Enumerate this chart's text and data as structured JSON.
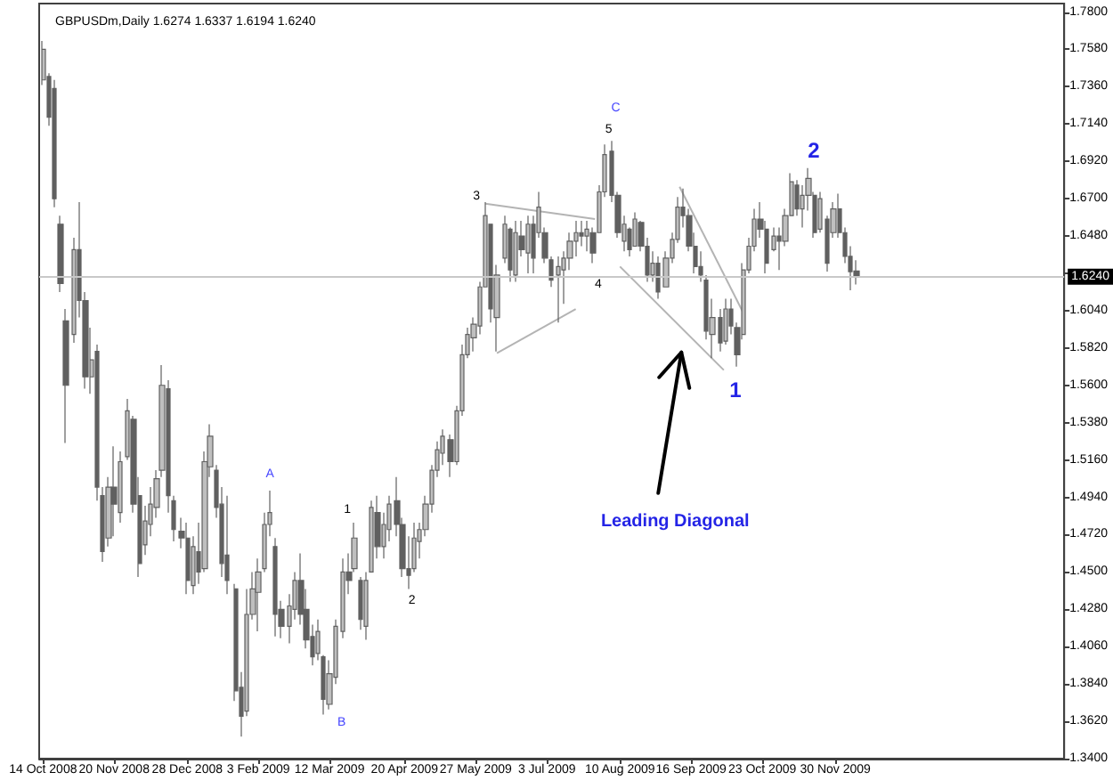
{
  "chart_data": {
    "type": "candlestick",
    "title": "GBPUSDm,Daily 1.6274 1.6337 1.6194 1.6240",
    "color": "#606060",
    "x": [
      "2008-10-14",
      "2008-10-17",
      "2008-10-20",
      "2008-10-23",
      "2008-10-26",
      "2008-10-30",
      "2008-11-02",
      "2008-11-05",
      "2008-11-08",
      "2008-11-11",
      "2008-11-14",
      "2008-11-17",
      "2008-11-20",
      "2008-11-23",
      "2008-11-27",
      "2008-11-30",
      "2008-12-03",
      "2008-12-06",
      "2008-12-09",
      "2008-12-12",
      "2008-12-15",
      "2008-12-18",
      "2008-12-21",
      "2008-12-25",
      "2008-12-28",
      "2008-12-31",
      "2009-01-03",
      "2009-01-06",
      "2009-01-09",
      "2009-01-12",
      "2009-01-15",
      "2009-01-18",
      "2009-01-22",
      "2009-01-25",
      "2009-01-28",
      "2009-01-31",
      "2009-02-03",
      "2009-02-06",
      "2009-02-09",
      "2009-02-12",
      "2009-02-15",
      "2009-02-19",
      "2009-02-22",
      "2009-02-25",
      "2009-02-28",
      "2009-03-03",
      "2009-03-06",
      "2009-03-09",
      "2009-03-12",
      "2009-03-15",
      "2009-03-19",
      "2009-03-22",
      "2009-03-25",
      "2009-03-28",
      "2009-03-31",
      "2009-04-03",
      "2009-04-06",
      "2009-04-09",
      "2009-04-12",
      "2009-04-16",
      "2009-04-19",
      "2009-04-22",
      "2009-04-25",
      "2009-04-28",
      "2009-05-01",
      "2009-05-04",
      "2009-05-07",
      "2009-05-10",
      "2009-05-14",
      "2009-05-17",
      "2009-05-20",
      "2009-05-23",
      "2009-05-26",
      "2009-05-29",
      "2009-06-01",
      "2009-06-04",
      "2009-06-07",
      "2009-06-11",
      "2009-06-14",
      "2009-06-17",
      "2009-06-20",
      "2009-06-23",
      "2009-06-26",
      "2009-06-29",
      "2009-07-02",
      "2009-07-05",
      "2009-07-09",
      "2009-07-12",
      "2009-07-15",
      "2009-07-18",
      "2009-07-21",
      "2009-07-24",
      "2009-07-27",
      "2009-07-30",
      "2009-08-02",
      "2009-08-06",
      "2009-08-09",
      "2009-08-12",
      "2009-08-15",
      "2009-08-18",
      "2009-08-21",
      "2009-08-24",
      "2009-08-27",
      "2009-08-30",
      "2009-09-03",
      "2009-09-06",
      "2009-09-09",
      "2009-09-12",
      "2009-09-15",
      "2009-09-18",
      "2009-09-21",
      "2009-09-24",
      "2009-09-27",
      "2009-10-01",
      "2009-10-04",
      "2009-10-07",
      "2009-10-10",
      "2009-10-13",
      "2009-10-16",
      "2009-10-19",
      "2009-10-22",
      "2009-10-25",
      "2009-10-29",
      "2009-11-01",
      "2009-11-04",
      "2009-11-07",
      "2009-11-10",
      "2009-11-13",
      "2009-11-16",
      "2009-11-19",
      "2009-11-22",
      "2009-11-26",
      "2009-11-29",
      "2009-12-02",
      "2009-12-05",
      "2009-12-08",
      "2009-12-11"
    ],
    "ohlc": [
      [
        1.74,
        1.763,
        1.737,
        1.758
      ],
      [
        1.742,
        1.744,
        1.713,
        1.718
      ],
      [
        1.735,
        1.74,
        1.665,
        1.67
      ],
      [
        1.655,
        1.66,
        1.615,
        1.62
      ],
      [
        1.598,
        1.605,
        1.526,
        1.56
      ],
      [
        1.59,
        1.647,
        1.585,
        1.64
      ],
      [
        1.64,
        1.668,
        1.6,
        1.61
      ],
      [
        1.61,
        1.615,
        1.558,
        1.565
      ],
      [
        1.565,
        1.594,
        1.555,
        1.575
      ],
      [
        1.58,
        1.584,
        1.492,
        1.5
      ],
      [
        1.495,
        1.5,
        1.456,
        1.462
      ],
      [
        1.47,
        1.506,
        1.465,
        1.5
      ],
      [
        1.5,
        1.524,
        1.471,
        1.49
      ],
      [
        1.485,
        1.521,
        1.479,
        1.515
      ],
      [
        1.518,
        1.552,
        1.516,
        1.545
      ],
      [
        1.54,
        1.542,
        1.485,
        1.49
      ],
      [
        1.495,
        1.506,
        1.447,
        1.455
      ],
      [
        1.466,
        1.489,
        1.46,
        1.48
      ],
      [
        1.478,
        1.5,
        1.471,
        1.49
      ],
      [
        1.488,
        1.51,
        1.482,
        1.505
      ],
      [
        1.51,
        1.572,
        1.506,
        1.56
      ],
      [
        1.558,
        1.563,
        1.485,
        1.495
      ],
      [
        1.492,
        1.495,
        1.468,
        1.475
      ],
      [
        1.474,
        1.482,
        1.464,
        1.47
      ],
      [
        1.47,
        1.479,
        1.437,
        1.445
      ],
      [
        1.442,
        1.471,
        1.437,
        1.465
      ],
      [
        1.462,
        1.479,
        1.443,
        1.45
      ],
      [
        1.452,
        1.521,
        1.45,
        1.515
      ],
      [
        1.512,
        1.537,
        1.506,
        1.53
      ],
      [
        1.51,
        1.513,
        1.482,
        1.488
      ],
      [
        1.49,
        1.5,
        1.447,
        1.455
      ],
      [
        1.46,
        1.495,
        1.437,
        1.445
      ],
      [
        1.44,
        1.443,
        1.374,
        1.38
      ],
      [
        1.382,
        1.391,
        1.353,
        1.365
      ],
      [
        1.368,
        1.44,
        1.365,
        1.425
      ],
      [
        1.425,
        1.45,
        1.422,
        1.44
      ],
      [
        1.438,
        1.458,
        1.415,
        1.45
      ],
      [
        1.452,
        1.485,
        1.45,
        1.478
      ],
      [
        1.478,
        1.498,
        1.471,
        1.485
      ],
      [
        1.465,
        1.47,
        1.412,
        1.425
      ],
      [
        1.428,
        1.433,
        1.411,
        1.418
      ],
      [
        1.418,
        1.437,
        1.408,
        1.43
      ],
      [
        1.428,
        1.45,
        1.422,
        1.445
      ],
      [
        1.445,
        1.461,
        1.419,
        1.425
      ],
      [
        1.428,
        1.44,
        1.405,
        1.41
      ],
      [
        1.412,
        1.419,
        1.395,
        1.4
      ],
      [
        1.402,
        1.422,
        1.398,
        1.415
      ],
      [
        1.4,
        1.401,
        1.366,
        1.375
      ],
      [
        1.372,
        1.398,
        1.369,
        1.39
      ],
      [
        1.388,
        1.422,
        1.384,
        1.418
      ],
      [
        1.415,
        1.458,
        1.411,
        1.45
      ],
      [
        1.45,
        1.461,
        1.437,
        1.445
      ],
      [
        1.452,
        1.479,
        1.45,
        1.47
      ],
      [
        1.445,
        1.447,
        1.416,
        1.422
      ],
      [
        1.418,
        1.45,
        1.41,
        1.445
      ],
      [
        1.45,
        1.492,
        1.45,
        1.488
      ],
      [
        1.485,
        1.495,
        1.458,
        1.465
      ],
      [
        1.465,
        1.485,
        1.458,
        1.478
      ],
      [
        1.475,
        1.495,
        1.468,
        1.49
      ],
      [
        1.492,
        1.506,
        1.471,
        1.478
      ],
      [
        1.478,
        1.482,
        1.447,
        1.452
      ],
      [
        1.452,
        1.471,
        1.44,
        1.448
      ],
      [
        1.452,
        1.479,
        1.45,
        1.47
      ],
      [
        1.468,
        1.479,
        1.458,
        1.475
      ],
      [
        1.475,
        1.495,
        1.471,
        1.49
      ],
      [
        1.49,
        1.513,
        1.485,
        1.51
      ],
      [
        1.51,
        1.527,
        1.506,
        1.522
      ],
      [
        1.52,
        1.534,
        1.513,
        1.53
      ],
      [
        1.528,
        1.531,
        1.506,
        1.515
      ],
      [
        1.515,
        1.548,
        1.513,
        1.545
      ],
      [
        1.545,
        1.584,
        1.542,
        1.578
      ],
      [
        1.578,
        1.594,
        1.576,
        1.59
      ],
      [
        1.588,
        1.6,
        1.58,
        1.596
      ],
      [
        1.595,
        1.621,
        1.59,
        1.618
      ],
      [
        1.618,
        1.668,
        1.618,
        1.66
      ],
      [
        1.655,
        1.655,
        1.597,
        1.605
      ],
      [
        1.6,
        1.631,
        1.58,
        1.625
      ],
      [
        1.635,
        1.66,
        1.632,
        1.655
      ],
      [
        1.652,
        1.653,
        1.621,
        1.628
      ],
      [
        1.625,
        1.657,
        1.621,
        1.65
      ],
      [
        1.648,
        1.657,
        1.636,
        1.64
      ],
      [
        1.638,
        1.66,
        1.626,
        1.655
      ],
      [
        1.655,
        1.66,
        1.626,
        1.635
      ],
      [
        1.65,
        1.674,
        1.647,
        1.665
      ],
      [
        1.65,
        1.653,
        1.632,
        1.635
      ],
      [
        1.634,
        1.636,
        1.618,
        1.622
      ],
      [
        1.625,
        1.636,
        1.597,
        1.63
      ],
      [
        1.628,
        1.639,
        1.608,
        1.635
      ],
      [
        1.635,
        1.65,
        1.628,
        1.645
      ],
      [
        1.645,
        1.657,
        1.636,
        1.65
      ],
      [
        1.65,
        1.657,
        1.642,
        1.648
      ],
      [
        1.648,
        1.657,
        1.639,
        1.652
      ],
      [
        1.65,
        1.653,
        1.632,
        1.638
      ],
      [
        1.65,
        1.678,
        1.65,
        1.674
      ],
      [
        1.674,
        1.702,
        1.671,
        1.696
      ],
      [
        1.698,
        1.704,
        1.668,
        1.672
      ],
      [
        1.672,
        1.674,
        1.647,
        1.65
      ],
      [
        1.645,
        1.66,
        1.639,
        1.655
      ],
      [
        1.652,
        1.653,
        1.636,
        1.64
      ],
      [
        1.642,
        1.662,
        1.642,
        1.658
      ],
      [
        1.656,
        1.657,
        1.639,
        1.642
      ],
      [
        1.642,
        1.647,
        1.621,
        1.625
      ],
      [
        1.625,
        1.639,
        1.621,
        1.632
      ],
      [
        1.632,
        1.636,
        1.611,
        1.615
      ],
      [
        1.618,
        1.639,
        1.618,
        1.635
      ],
      [
        1.635,
        1.65,
        1.632,
        1.646
      ],
      [
        1.646,
        1.671,
        1.644,
        1.665
      ],
      [
        1.665,
        1.676,
        1.653,
        1.66
      ],
      [
        1.66,
        1.664,
        1.639,
        1.642
      ],
      [
        1.642,
        1.65,
        1.626,
        1.63
      ],
      [
        1.63,
        1.639,
        1.621,
        1.625
      ],
      [
        1.622,
        1.625,
        1.587,
        1.592
      ],
      [
        1.59,
        1.611,
        1.576,
        1.6
      ],
      [
        1.6,
        1.605,
        1.58,
        1.585
      ],
      [
        1.586,
        1.611,
        1.584,
        1.605
      ],
      [
        1.605,
        1.611,
        1.59,
        1.595
      ],
      [
        1.594,
        1.597,
        1.571,
        1.578
      ],
      [
        1.59,
        1.632,
        1.587,
        1.628
      ],
      [
        1.628,
        1.647,
        1.626,
        1.642
      ],
      [
        1.642,
        1.664,
        1.639,
        1.658
      ],
      [
        1.658,
        1.668,
        1.647,
        1.652
      ],
      [
        1.652,
        1.657,
        1.626,
        1.632
      ],
      [
        1.64,
        1.653,
        1.639,
        1.648
      ],
      [
        1.648,
        1.653,
        1.628,
        1.645
      ],
      [
        1.645,
        1.664,
        1.642,
        1.66
      ],
      [
        1.66,
        1.685,
        1.66,
        1.68
      ],
      [
        1.678,
        1.681,
        1.66,
        1.664
      ],
      [
        1.664,
        1.678,
        1.653,
        1.672
      ],
      [
        1.672,
        1.688,
        1.663,
        1.682
      ],
      [
        1.672,
        1.674,
        1.647,
        1.65
      ],
      [
        1.652,
        1.674,
        1.65,
        1.67
      ],
      [
        1.658,
        1.66,
        1.627,
        1.632
      ],
      [
        1.65,
        1.668,
        1.647,
        1.664
      ],
      [
        1.664,
        1.673,
        1.647,
        1.65
      ],
      [
        1.65,
        1.653,
        1.632,
        1.636
      ],
      [
        1.636,
        1.642,
        1.616,
        1.627
      ],
      [
        1.6274,
        1.6337,
        1.6194,
        1.624
      ]
    ],
    "series": [
      {
        "type": "line",
        "color": "#b4b4b4",
        "x": [
          "2009-06-01",
          "2009-07-28"
        ],
        "values": [
          1.667,
          1.658
        ]
      },
      {
        "type": "line",
        "color": "#b4b4b4",
        "x": [
          "2009-06-07",
          "2009-07-18"
        ],
        "values": [
          1.579,
          1.605
        ]
      },
      {
        "type": "line",
        "color": "#b4b4b4",
        "x": [
          "2009-08-10",
          "2009-10-03"
        ],
        "values": [
          1.63,
          1.569
        ]
      },
      {
        "type": "line",
        "color": "#b4b4b4",
        "x": [
          "2009-09-10",
          "2009-10-13"
        ],
        "values": [
          1.677,
          1.603
        ]
      }
    ],
    "xlim": [
      "2008-10-12",
      "2010-03-29"
    ],
    "xticks": [
      {
        "value": "2008-10-14",
        "label": "14 Oct 2008"
      },
      {
        "value": "2008-11-20",
        "label": "20 Nov 2008"
      },
      {
        "value": "2008-12-28",
        "label": "28 Dec 2008"
      },
      {
        "value": "2009-02-03",
        "label": "3 Feb 2009"
      },
      {
        "value": "2009-03-12",
        "label": "12 Mar 2009"
      },
      {
        "value": "2009-04-20",
        "label": "20 Apr 2009"
      },
      {
        "value": "2009-05-27",
        "label": "27 May 2009"
      },
      {
        "value": "2009-07-03",
        "label": "3 Jul 2009"
      },
      {
        "value": "2009-08-10",
        "label": "10 Aug 2009"
      },
      {
        "value": "2009-09-16",
        "label": "16 Sep 2009"
      },
      {
        "value": "2009-10-23",
        "label": "23 Oct 2009"
      },
      {
        "value": "2009-11-30",
        "label": "30 Nov 2009"
      }
    ],
    "ylim": [
      1.34,
      1.785
    ],
    "yticks": [
      {
        "value": 1.34,
        "label": "1.3400"
      },
      {
        "value": 1.362,
        "label": "1.3620"
      },
      {
        "value": 1.384,
        "label": "1.3840"
      },
      {
        "value": 1.406,
        "label": "1.4060"
      },
      {
        "value": 1.428,
        "label": "1.4280"
      },
      {
        "value": 1.45,
        "label": "1.4500"
      },
      {
        "value": 1.472,
        "label": "1.4720"
      },
      {
        "value": 1.494,
        "label": "1.4940"
      },
      {
        "value": 1.516,
        "label": "1.5160"
      },
      {
        "value": 1.538,
        "label": "1.5380"
      },
      {
        "value": 1.56,
        "label": "1.5600"
      },
      {
        "value": 1.582,
        "label": "1.5820"
      },
      {
        "value": 1.604,
        "label": "1.6040"
      },
      {
        "value": 1.626,
        "label": null
      },
      {
        "value": 1.648,
        "label": "1.6480"
      },
      {
        "value": 1.67,
        "label": "1.6700"
      },
      {
        "value": 1.692,
        "label": "1.6920"
      },
      {
        "value": 1.714,
        "label": "1.7140"
      },
      {
        "value": 1.736,
        "label": "1.7360"
      },
      {
        "value": 1.758,
        "label": "1.7580"
      },
      {
        "value": 1.78,
        "label": "1.7800"
      }
    ],
    "ref_lines": [
      {
        "axis": "y",
        "value": 1.624,
        "label": "1.6240",
        "color": "#c8c8c8"
      }
    ],
    "annotations": [
      {
        "text": "A",
        "x": "2009-02-09",
        "y": 1.498
      },
      {
        "text": "B",
        "x": "2009-03-09",
        "y": 1.366
      },
      {
        "text": "C",
        "x": "2009-08-06",
        "y": 1.704
      },
      {
        "text": "1",
        "x": "2009-03-25",
        "y": 1.479
      },
      {
        "text": "2",
        "x": "2009-04-22",
        "y": 1.44
      },
      {
        "text": "3",
        "x": "2009-06-01",
        "y": 1.668
      },
      {
        "text": "4",
        "x": "2009-07-27",
        "y": 1.632
      },
      {
        "text": "5",
        "x": "2009-08-06",
        "y": 1.704
      },
      {
        "text": "1",
        "x": "2009-10-10",
        "y": 1.571
      },
      {
        "text": "2",
        "x": "2009-11-16",
        "y": 1.688
      },
      "Leading Diagonal"
    ]
  }
}
